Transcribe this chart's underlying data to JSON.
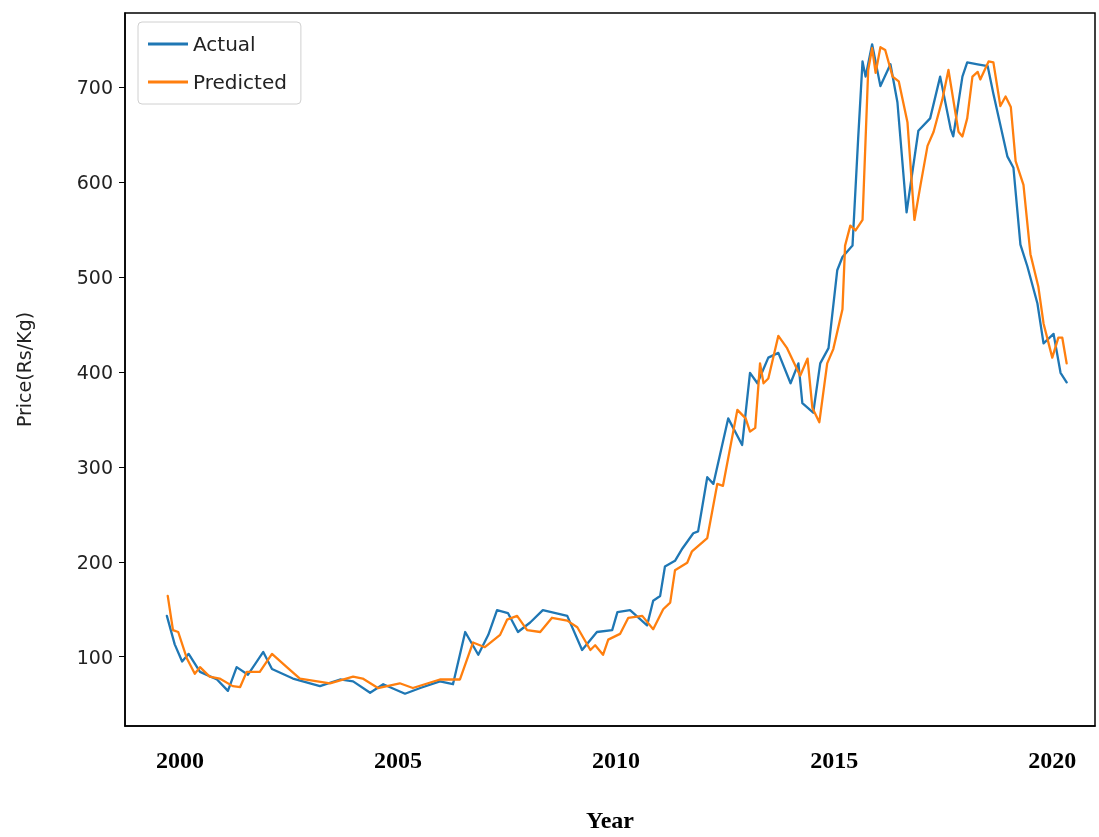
{
  "chart_data": {
    "type": "line",
    "xlabel": "Year",
    "ylabel": "Price(Rs/Kg)",
    "xlim": [
      1998.74,
      2020.98
    ],
    "ylim": [
      27,
      778
    ],
    "xticks": [
      2000,
      2005,
      2010,
      2015,
      2020
    ],
    "yticks": [
      100,
      200,
      300,
      400,
      500,
      600,
      700
    ],
    "grid": false,
    "legend": "top left",
    "marker": "none",
    "line_style": "solid",
    "series": [
      {
        "name": "Actual",
        "color": "#1f77b4",
        "x": [
          1999.7,
          1999.88,
          2000.05,
          2000.2,
          2000.46,
          2000.85,
          2001.1,
          2001.3,
          2001.56,
          2001.91,
          2002.11,
          2002.59,
          2003.21,
          2003.67,
          2003.97,
          2004.36,
          2004.66,
          2005.16,
          2005.51,
          2005.96,
          2006.26,
          2006.54,
          2006.84,
          2007.07,
          2007.27,
          2007.52,
          2007.75,
          2008.03,
          2008.32,
          2008.88,
          2009.22,
          2009.56,
          2009.91,
          2010.03,
          2010.32,
          2010.71,
          2010.85,
          2011.01,
          2011.12,
          2011.35,
          2011.52,
          2011.77,
          2011.88,
          2012.09,
          2012.23,
          2012.57,
          2012.89,
          2013.07,
          2013.24,
          2013.49,
          2013.72,
          2014.0,
          2014.18,
          2014.27,
          2014.52,
          2014.68,
          2014.87,
          2015.07,
          2015.19,
          2015.42,
          2015.55,
          2015.65,
          2015.72,
          2015.87,
          2016.06,
          2016.29,
          2016.45,
          2016.66,
          2016.93,
          2017.2,
          2017.43,
          2017.67,
          2017.73,
          2017.94,
          2018.05,
          2018.29,
          2018.52,
          2018.65,
          2018.97,
          2019.11,
          2019.27,
          2019.43,
          2019.66,
          2019.8,
          2020.03,
          2020.19,
          2020.33
        ],
        "values": [
          143,
          113,
          95,
          103,
          84,
          76,
          64,
          89,
          81,
          105,
          87,
          77,
          69,
          76,
          74,
          62,
          71,
          61,
          67,
          74,
          71,
          126,
          102,
          123,
          149,
          146,
          126,
          136,
          149,
          143,
          107,
          126,
          128,
          147,
          149,
          133,
          159,
          164,
          195,
          201,
          214,
          230,
          232,
          289,
          282,
          351,
          323,
          399,
          388,
          415,
          420,
          388,
          409,
          367,
          357,
          409,
          425,
          507,
          521,
          533,
          646,
          727,
          711,
          745,
          701,
          724,
          684,
          568,
          654,
          667,
          711,
          656,
          648,
          711,
          726,
          724,
          722,
          693,
          627,
          615,
          534,
          511,
          472,
          430,
          440,
          399,
          389
        ]
      },
      {
        "name": "Predicted",
        "color": "#ff7f0e",
        "x": [
          1999.72,
          1999.84,
          1999.96,
          2000.16,
          2000.34,
          2000.46,
          2000.68,
          2000.91,
          2001.21,
          2001.38,
          2001.53,
          2001.83,
          2002.11,
          2002.45,
          2002.75,
          2003.44,
          2003.97,
          2004.19,
          2004.54,
          2005.04,
          2005.34,
          2005.96,
          2006.42,
          2006.72,
          2006.99,
          2007.34,
          2007.5,
          2007.73,
          2007.96,
          2008.26,
          2008.53,
          2008.88,
          2009.11,
          2009.41,
          2009.52,
          2009.7,
          2009.82,
          2010.09,
          2010.28,
          2010.6,
          2010.85,
          2011.08,
          2011.24,
          2011.35,
          2011.63,
          2011.74,
          2012.09,
          2012.32,
          2012.45,
          2012.78,
          2012.97,
          2013.07,
          2013.19,
          2013.3,
          2013.38,
          2013.49,
          2013.72,
          2013.92,
          2014.22,
          2014.39,
          2014.5,
          2014.66,
          2014.84,
          2014.98,
          2015.19,
          2015.25,
          2015.37,
          2015.49,
          2015.65,
          2015.78,
          2015.87,
          2015.95,
          2016.06,
          2016.17,
          2016.34,
          2016.48,
          2016.68,
          2016.84,
          2016.98,
          2017.14,
          2017.28,
          2017.48,
          2017.62,
          2017.85,
          2017.94,
          2018.05,
          2018.17,
          2018.29,
          2018.35,
          2018.54,
          2018.65,
          2018.81,
          2018.93,
          2019.05,
          2019.16,
          2019.34,
          2019.5,
          2019.68,
          2019.8,
          2020.0,
          2020.14,
          2020.23,
          2020.33
        ],
        "values": [
          164,
          128,
          126,
          98,
          82,
          89,
          79,
          77,
          69,
          68,
          84,
          84,
          103,
          89,
          77,
          72,
          79,
          77,
          67,
          72,
          67,
          76,
          76,
          115,
          110,
          123,
          139,
          143,
          128,
          126,
          141,
          138,
          131,
          107,
          112,
          102,
          118,
          124,
          141,
          143,
          129,
          150,
          157,
          191,
          199,
          211,
          225,
          282,
          280,
          360,
          351,
          337,
          341,
          409,
          388,
          393,
          438,
          425,
          396,
          414,
          362,
          347,
          409,
          424,
          466,
          533,
          554,
          549,
          560,
          718,
          741,
          715,
          742,
          739,
          711,
          706,
          663,
          560,
          597,
          638,
          653,
          687,
          718,
          653,
          648,
          667,
          711,
          716,
          708,
          727,
          726,
          680,
          690,
          679,
          622,
          597,
          524,
          490,
          451,
          415,
          436,
          436,
          409
        ]
      }
    ]
  }
}
